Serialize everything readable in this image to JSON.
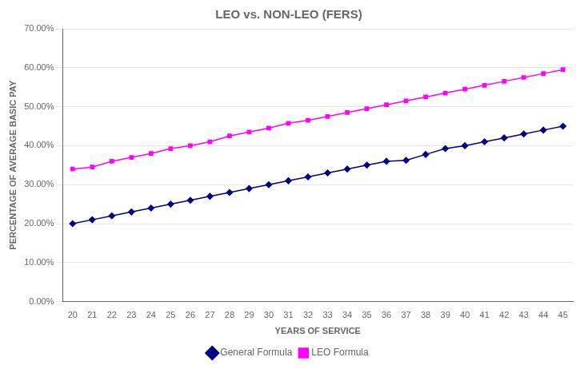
{
  "chart_data": {
    "type": "line",
    "title": "LEO vs. NON-LEO (FERS)",
    "x_label": "YEARS OF SERVICE",
    "y_label": "PERCENTAGE OF AVERAGE BASIC PAY",
    "x": [
      20,
      21,
      22,
      23,
      24,
      25,
      26,
      27,
      28,
      29,
      30,
      31,
      32,
      33,
      34,
      35,
      36,
      37,
      38,
      39,
      40,
      41,
      42,
      43,
      44,
      45
    ],
    "series": [
      {
        "name": "General Formula",
        "color": "#000080",
        "marker": "diamond",
        "values": [
          0.2,
          0.21,
          0.22,
          0.23,
          0.24,
          0.25,
          0.26,
          0.27,
          0.28,
          0.29,
          0.3,
          0.31,
          0.32,
          0.33,
          0.34,
          0.35,
          0.36,
          0.3625,
          0.3775,
          0.3925,
          0.4,
          0.41,
          0.42,
          0.43,
          0.44,
          0.45
        ]
      },
      {
        "name": "LEO Formula",
        "color": "#FF00FF",
        "marker": "square",
        "values": [
          0.34,
          0.345,
          0.36,
          0.37,
          0.38,
          0.3925,
          0.4,
          0.41,
          0.425,
          0.435,
          0.445,
          0.4575,
          0.465,
          0.475,
          0.485,
          0.495,
          0.505,
          0.515,
          0.525,
          0.535,
          0.545,
          0.555,
          0.565,
          0.575,
          0.585,
          0.595
        ]
      }
    ],
    "xlim": [
      19.5,
      45.5
    ],
    "xticks": [
      20,
      21,
      22,
      23,
      24,
      25,
      26,
      27,
      28,
      29,
      30,
      31,
      32,
      33,
      34,
      35,
      36,
      37,
      38,
      39,
      40,
      41,
      42,
      43,
      44,
      45
    ],
    "ylim": [
      0.0,
      0.7
    ],
    "yticks": [
      {
        "value": 0.0,
        "label": "0.00%"
      },
      {
        "value": 0.1,
        "label": "10.00%"
      },
      {
        "value": 0.2,
        "label": "20.00%"
      },
      {
        "value": 0.3,
        "label": "30.00%"
      },
      {
        "value": 0.4,
        "label": "40.00%"
      },
      {
        "value": 0.5,
        "label": "50.00%"
      },
      {
        "value": 0.6,
        "label": "60.00%"
      },
      {
        "value": 0.7,
        "label": "70.00%"
      }
    ],
    "grid": "y",
    "legend": "bottom"
  }
}
